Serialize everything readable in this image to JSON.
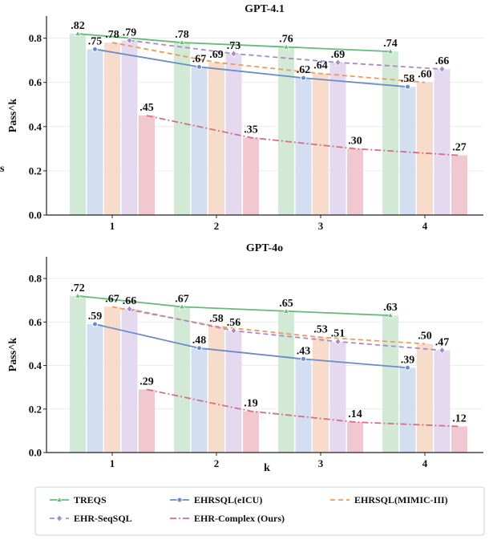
{
  "chart_data": [
    {
      "type": "bar",
      "title": "GPT-4.1",
      "xlabel": "",
      "ylabel": "Pass^k",
      "ylim": [
        0,
        0.9
      ],
      "yticks": [
        "0.0",
        "0.2",
        "0.4",
        "0.6",
        "0.8"
      ],
      "categories": [
        "1",
        "2",
        "3",
        "4"
      ],
      "grid": "horizontal",
      "series": [
        {
          "name": "TREQS",
          "color": "#66bb77",
          "bar_color": "#d2ead5",
          "line_style": "solid",
          "marker": "triangle",
          "values": [
            0.82,
            0.78,
            0.76,
            0.74
          ],
          "labels": [
            ".82",
            ".78",
            ".76",
            ".74"
          ]
        },
        {
          "name": "EHRSQL(eICU)",
          "color": "#6a8cc7",
          "bar_color": "#d3def0",
          "line_style": "solid",
          "marker": "circle",
          "values": [
            0.75,
            0.67,
            0.62,
            0.58
          ],
          "labels": [
            ".75",
            ".67",
            ".62",
            ".58"
          ]
        },
        {
          "name": "EHRSQL(MIMIC-III)",
          "color": "#ee9a5a",
          "bar_color": "#f8dccb",
          "line_style": "dashed",
          "marker": "none",
          "values": [
            0.78,
            0.69,
            0.64,
            0.6
          ],
          "labels": [
            ".78",
            ".69",
            ".64",
            ".60"
          ]
        },
        {
          "name": "EHR-SeqSQL",
          "color": "#a98ac9",
          "bar_color": "#e5d9ef",
          "line_style": "dashed",
          "marker": "diamond",
          "values": [
            0.79,
            0.73,
            0.69,
            0.66
          ],
          "labels": [
            ".79",
            ".73",
            ".69",
            ".66"
          ]
        },
        {
          "name": "EHR-Complex (Ours)",
          "color": "#d56f87",
          "bar_color": "#f1c7d0",
          "line_style": "dashdot",
          "marker": "none",
          "values": [
            0.45,
            0.35,
            0.3,
            0.27
          ],
          "labels": [
            ".45",
            ".35",
            ".30",
            ".27"
          ]
        }
      ]
    },
    {
      "type": "bar",
      "title": "GPT-4o",
      "xlabel": "k",
      "ylabel": "Pass^k",
      "ylim": [
        0,
        0.9
      ],
      "yticks": [
        "0.0",
        "0.2",
        "0.4",
        "0.6",
        "0.8"
      ],
      "categories": [
        "1",
        "2",
        "3",
        "4"
      ],
      "grid": "horizontal",
      "series": [
        {
          "name": "TREQS",
          "color": "#66bb77",
          "bar_color": "#d2ead5",
          "line_style": "solid",
          "marker": "triangle",
          "values": [
            0.72,
            0.67,
            0.65,
            0.63
          ],
          "labels": [
            ".72",
            ".67",
            ".65",
            ".63"
          ]
        },
        {
          "name": "EHRSQL(eICU)",
          "color": "#6a8cc7",
          "bar_color": "#d3def0",
          "line_style": "solid",
          "marker": "circle",
          "values": [
            0.59,
            0.48,
            0.43,
            0.39
          ],
          "labels": [
            ".59",
            ".48",
            ".43",
            ".39"
          ]
        },
        {
          "name": "EHRSQL(MIMIC-III)",
          "color": "#ee9a5a",
          "bar_color": "#f8dccb",
          "line_style": "dashed",
          "marker": "none",
          "values": [
            0.67,
            0.58,
            0.53,
            0.5
          ],
          "labels": [
            ".67",
            ".58",
            ".53",
            ".50"
          ]
        },
        {
          "name": "EHR-SeqSQL",
          "color": "#a98ac9",
          "bar_color": "#e5d9ef",
          "line_style": "dashed",
          "marker": "diamond",
          "values": [
            0.66,
            0.56,
            0.51,
            0.47
          ],
          "labels": [
            ".66",
            ".56",
            ".51",
            ".47"
          ]
        },
        {
          "name": "EHR-Complex (Ours)",
          "color": "#d56f87",
          "bar_color": "#f1c7d0",
          "line_style": "dashdot",
          "marker": "none",
          "values": [
            0.29,
            0.19,
            0.14,
            0.12
          ],
          "labels": [
            ".29",
            ".19",
            ".14",
            ".12"
          ]
        }
      ]
    }
  ],
  "left_edge_text": "s",
  "legend": {
    "placement": "bottom",
    "items": [
      "TREQS",
      "EHRSQL(eICU)",
      "EHRSQL(MIMIC-III)",
      "EHR-SeqSQL",
      "EHR-Complex (Ours)"
    ]
  }
}
